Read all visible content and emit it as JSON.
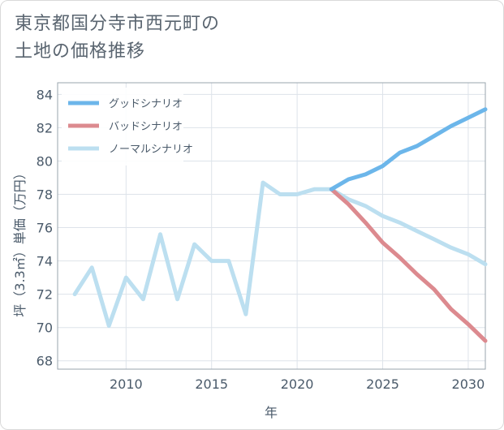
{
  "title_line1": "東京都国分寺市西元町の",
  "title_line2": "土地の価格推移",
  "chart_data": {
    "type": "line",
    "xlabel": "年",
    "ylabel": "坪（3.3㎡）単価（万円）",
    "xlim": [
      2006,
      2031
    ],
    "ylim": [
      67.5,
      84.7
    ],
    "xticks": [
      2010,
      2015,
      2020,
      2025,
      2030
    ],
    "yticks": [
      68,
      70,
      72,
      74,
      76,
      78,
      80,
      82,
      84
    ],
    "grid": true,
    "legend_position": "top-left",
    "series": [
      {
        "name": "グッドシナリオ",
        "color": "#6cb6ea",
        "x": [
          2022,
          2023,
          2024,
          2025,
          2026,
          2027,
          2028,
          2029,
          2030,
          2031
        ],
        "y": [
          78.3,
          78.9,
          79.2,
          79.7,
          80.5,
          80.9,
          81.5,
          82.1,
          82.6,
          83.1
        ]
      },
      {
        "name": "バッドシナリオ",
        "color": "#dc8a8f",
        "x": [
          2022,
          2023,
          2024,
          2025,
          2026,
          2027,
          2028,
          2029,
          2030,
          2031
        ],
        "y": [
          78.3,
          77.4,
          76.3,
          75.1,
          74.2,
          73.2,
          72.3,
          71.1,
          70.2,
          69.2
        ]
      },
      {
        "name": "ノーマルシナリオ",
        "color": "#bcdff0",
        "x": [
          2007,
          2008,
          2009,
          2010,
          2011,
          2012,
          2013,
          2014,
          2015,
          2016,
          2017,
          2018,
          2019,
          2020,
          2021,
          2022,
          2023,
          2024,
          2025,
          2026,
          2027,
          2028,
          2029,
          2030,
          2031
        ],
        "y": [
          72.0,
          73.6,
          70.1,
          73.0,
          71.7,
          75.6,
          71.7,
          75.0,
          74.0,
          74.0,
          70.8,
          78.7,
          78.0,
          78.0,
          78.3,
          78.3,
          77.7,
          77.3,
          76.7,
          76.3,
          75.8,
          75.3,
          74.8,
          74.4,
          73.8
        ]
      }
    ]
  }
}
